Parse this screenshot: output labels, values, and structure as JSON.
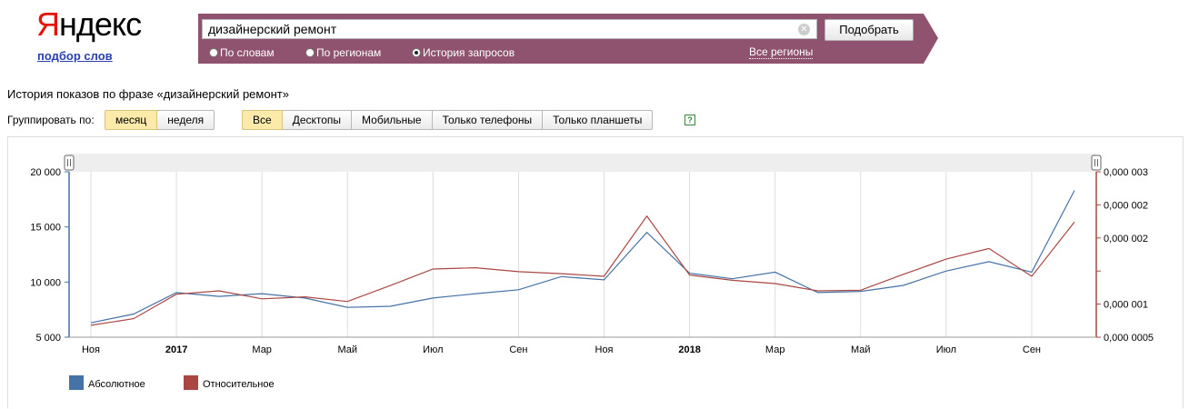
{
  "logo": {
    "first_letter": "Я",
    "rest": "ндекс"
  },
  "subtitle": "подбор слов",
  "search": {
    "value": "дизайнерский ремонт",
    "button_label": "Подобрать",
    "modes": [
      {
        "label": "По словам",
        "selected": false
      },
      {
        "label": "По регионам",
        "selected": false
      },
      {
        "label": "История запросов",
        "selected": true
      }
    ],
    "regions_link": "Все регионы",
    "bar_color": "#8f5370"
  },
  "page": {
    "heading": "История показов по фразе «дизайнерский ремонт»",
    "group_label": "Группировать по:",
    "group_options": [
      {
        "label": "месяц",
        "active": true
      },
      {
        "label": "неделя",
        "active": false
      }
    ],
    "device_options": [
      {
        "label": "Все",
        "active": true
      },
      {
        "label": "Десктопы",
        "active": false
      },
      {
        "label": "Мобильные",
        "active": false
      },
      {
        "label": "Только телефоны",
        "active": false
      },
      {
        "label": "Только планшеты",
        "active": false
      }
    ],
    "help_icon": "question-icon"
  },
  "chart_data": {
    "type": "line",
    "x": [
      "2016-11",
      "2016-12",
      "2017-01",
      "2017-02",
      "2017-03",
      "2017-04",
      "2017-05",
      "2017-06",
      "2017-07",
      "2017-08",
      "2017-09",
      "2017-10",
      "2017-11",
      "2017-12",
      "2018-01",
      "2018-02",
      "2018-03",
      "2018-04",
      "2018-05",
      "2018-06",
      "2018-07",
      "2018-08",
      "2018-09",
      "2018-10"
    ],
    "x_tick_labels": [
      "Ноя",
      "2017",
      "Мар",
      "Май",
      "Июл",
      "Сен",
      "Ноя",
      "2018",
      "Мар",
      "Май",
      "Июл",
      "Сен"
    ],
    "x_tick_bold": [
      false,
      true,
      false,
      false,
      false,
      false,
      false,
      true,
      false,
      false,
      false,
      false
    ],
    "y_left": {
      "ticks": [
        "5 000",
        "10 000",
        "15 000",
        "20 000"
      ],
      "min": 5000,
      "max": 20000
    },
    "y_right": {
      "ticks": [
        "0,000 0005",
        "0,000 001",
        "0,000 002",
        "0,000 002",
        "0,000 003"
      ],
      "min": 5e-07,
      "max": 3e-06
    },
    "series": [
      {
        "name": "Абсолютное",
        "color": "#4572a7",
        "axis": "left",
        "values": [
          6300,
          7100,
          9050,
          8700,
          8950,
          8550,
          7700,
          7800,
          8550,
          8950,
          9300,
          10500,
          10200,
          14500,
          10800,
          10300,
          10900,
          9050,
          9150,
          9700,
          11000,
          11850,
          10900,
          18300
        ]
      },
      {
        "name": "Относительное",
        "color": "#aa4643",
        "axis": "right",
        "values": [
          6.8e-07,
          7.8e-07,
          1.15e-06,
          1.2e-06,
          1.08e-06,
          1.11e-06,
          1.04e-06,
          1.28e-06,
          1.53e-06,
          1.55e-06,
          1.49e-06,
          1.46e-06,
          1.42e-06,
          2.33e-06,
          1.44e-06,
          1.36e-06,
          1.31e-06,
          1.2e-06,
          1.21e-06,
          1.45e-06,
          1.68e-06,
          1.84e-06,
          1.42e-06,
          2.24e-06
        ]
      }
    ]
  }
}
